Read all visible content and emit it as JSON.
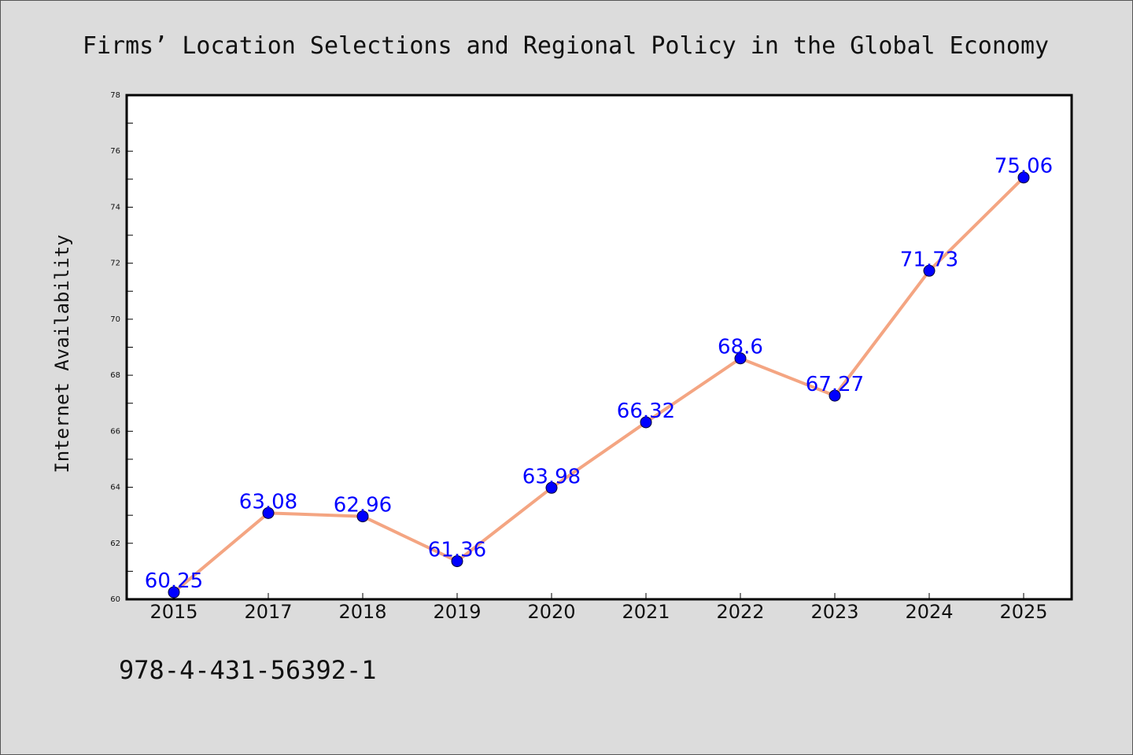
{
  "isbn": "978-4-431-56392-1",
  "colors": {
    "background": "#dcdcdc",
    "plot_background": "#ffffff",
    "line": "#f4a582",
    "marker": "#0000ff",
    "data_label": "#0000ff"
  },
  "chart_data": {
    "type": "line",
    "title": "Firms’ Location Selections and Regional Policy in the Global Economy",
    "xlabel": "",
    "ylabel": "Internet Availability",
    "categories": [
      "2015",
      "2017",
      "2018",
      "2019",
      "2020",
      "2021",
      "2022",
      "2023",
      "2024",
      "2025"
    ],
    "series": [
      {
        "values": [
          60.25,
          63.08,
          62.96,
          61.36,
          63.98,
          66.32,
          68.6,
          67.27,
          71.73,
          75.06
        ],
        "labels": [
          "60.25",
          "63.08",
          "62.96",
          "61.36",
          "63.98",
          "66.32",
          "68.6",
          "67.27",
          "71.73",
          "75.06"
        ]
      }
    ],
    "ylim": [
      60,
      78
    ],
    "yticks": [
      60,
      62,
      64,
      66,
      68,
      70,
      72,
      74,
      76,
      78
    ],
    "grid": false,
    "legend": "none"
  }
}
